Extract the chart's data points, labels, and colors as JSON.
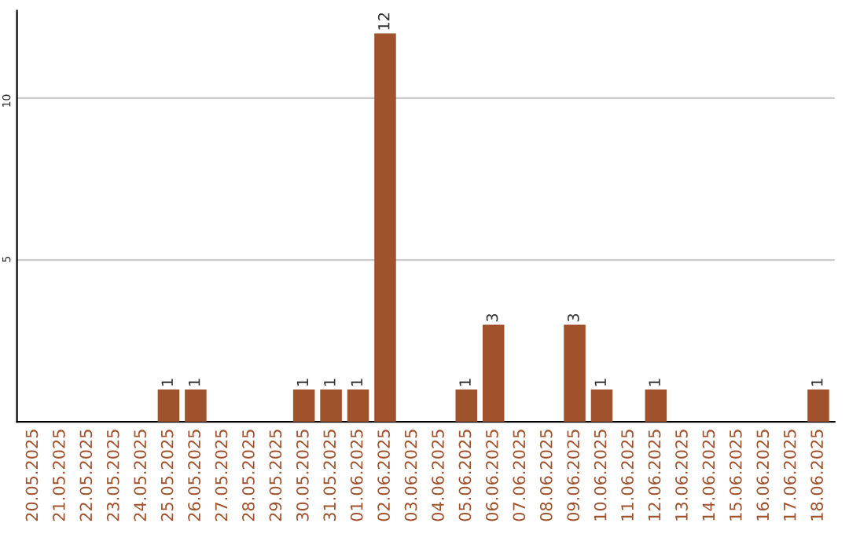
{
  "chart_data": {
    "type": "bar",
    "categories": [
      "20.05.2025",
      "21.05.2025",
      "22.05.2025",
      "23.05.2025",
      "24.05.2025",
      "25.05.2025",
      "26.05.2025",
      "27.05.2025",
      "28.05.2025",
      "29.05.2025",
      "30.05.2025",
      "31.05.2025",
      "01.06.2025",
      "02.06.2025",
      "03.06.2025",
      "04.06.2025",
      "05.06.2025",
      "06.06.2025",
      "07.06.2025",
      "08.06.2025",
      "09.06.2025",
      "10.06.2025",
      "11.06.2025",
      "12.06.2025",
      "13.06.2025",
      "14.06.2025",
      "15.06.2025",
      "16.06.2025",
      "17.06.2025",
      "18.06.2025"
    ],
    "values": [
      0,
      0,
      0,
      0,
      0,
      1,
      1,
      0,
      0,
      0,
      1,
      1,
      1,
      12,
      0,
      0,
      1,
      3,
      0,
      0,
      3,
      1,
      0,
      1,
      0,
      0,
      0,
      0,
      0,
      1
    ],
    "value_labels": [
      null,
      null,
      null,
      null,
      null,
      "1",
      "1",
      null,
      null,
      null,
      "1",
      "1",
      "1",
      "12",
      null,
      null,
      "1",
      "3",
      null,
      null,
      "3",
      "1",
      null,
      "1",
      null,
      null,
      null,
      null,
      null,
      "1"
    ],
    "color": "#a0522d",
    "ylim": [
      0,
      12.7
    ],
    "yticks": [
      5,
      10
    ],
    "grid": "y"
  }
}
